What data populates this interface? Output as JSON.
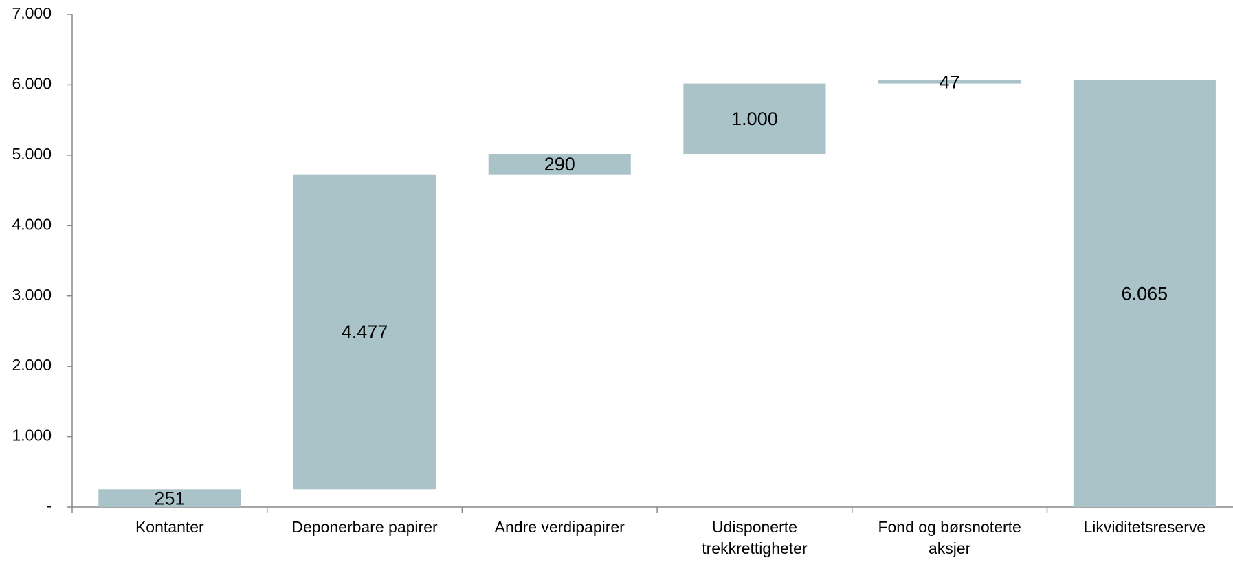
{
  "chart_data": {
    "type": "waterfall",
    "categories": [
      "Kontanter",
      "Deponerbare papirer",
      "Andre verdipapirer",
      "Udisponerte trekkrettigheter",
      "Fond og børsnoterte aksjer",
      "Likviditetsreserve"
    ],
    "values": [
      251,
      4477,
      290,
      1000,
      47,
      6065
    ],
    "value_labels": [
      "251",
      "4.477",
      "290",
      "1.000",
      "47",
      "6.065"
    ],
    "color": "#a9c3c9",
    "ylim": [
      0,
      7000
    ],
    "yticks": [
      {
        "value": 0,
        "label": "-"
      },
      {
        "value": 1000,
        "label": "1.000"
      },
      {
        "value": 2000,
        "label": "2.000"
      },
      {
        "value": 3000,
        "label": "3.000"
      },
      {
        "value": 4000,
        "label": "4.000"
      },
      {
        "value": 5000,
        "label": "5.000"
      },
      {
        "value": 6000,
        "label": "6.000"
      },
      {
        "value": 7000,
        "label": "7.000"
      }
    ]
  }
}
